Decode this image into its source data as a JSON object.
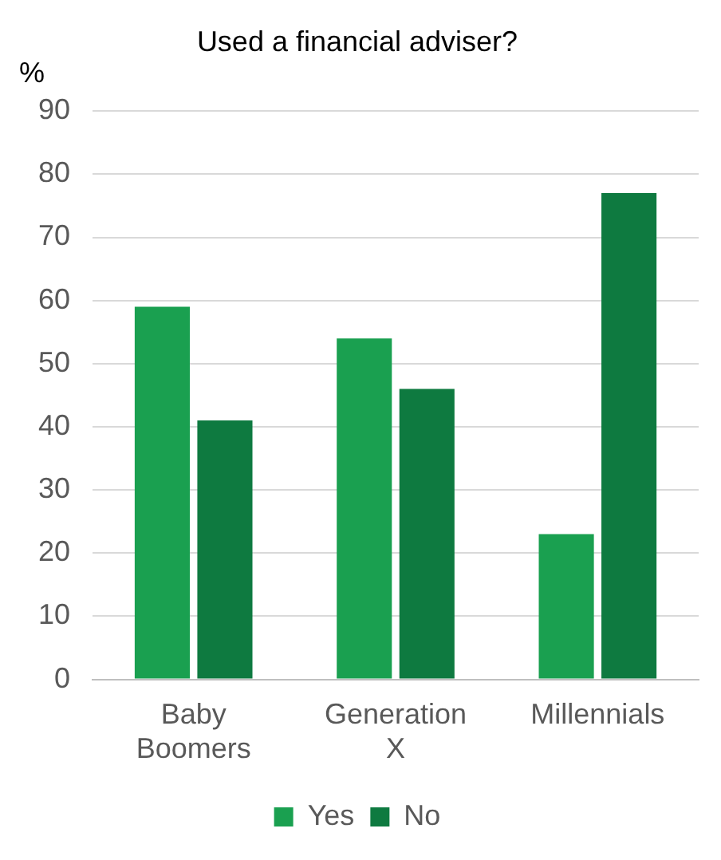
{
  "chart_data": {
    "type": "bar",
    "title": "Used a financial adviser?",
    "ylabel": "%",
    "categories": [
      "Baby Boomers",
      "Generation X",
      "Millennials"
    ],
    "series": [
      {
        "name": "Yes",
        "color": "#1aa050",
        "values": [
          59,
          54,
          23
        ]
      },
      {
        "name": "No",
        "color": "#0e7a40",
        "values": [
          41,
          46,
          77
        ]
      }
    ],
    "ylim": [
      0,
      90
    ],
    "yticks": [
      0,
      10,
      20,
      30,
      40,
      50,
      60,
      70,
      80,
      90
    ],
    "grid": "y",
    "legend": "bottom"
  }
}
